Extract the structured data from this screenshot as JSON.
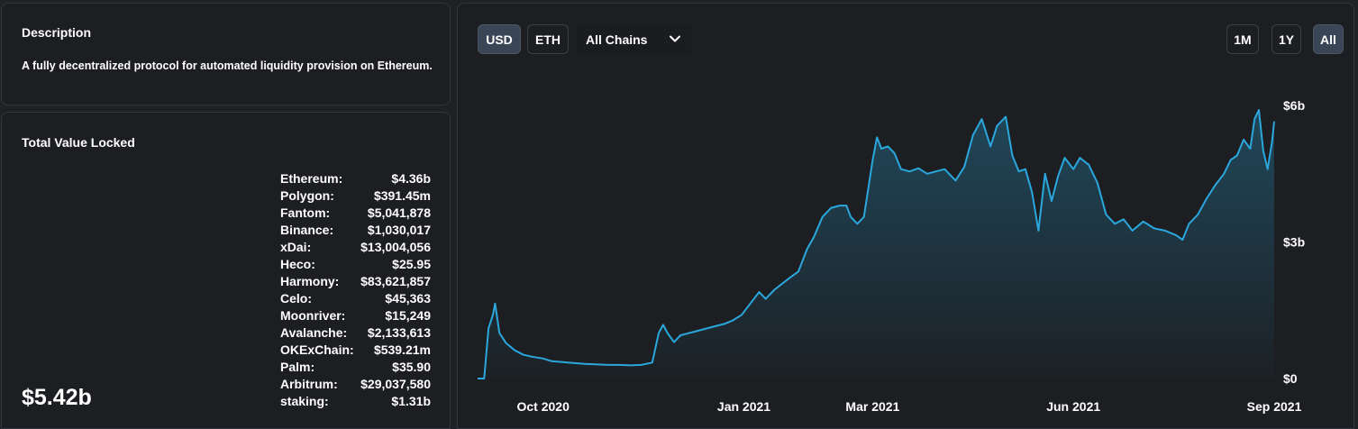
{
  "description": {
    "title": "Description",
    "text": "A fully decentralized protocol for automated liquidity provision on Ethereum."
  },
  "tvl": {
    "title": "Total Value Locked",
    "total": "$5.42b",
    "chains": [
      {
        "name": "Ethereum:",
        "value": "$4.36b"
      },
      {
        "name": "Polygon:",
        "value": "$391.45m"
      },
      {
        "name": "Fantom:",
        "value": "$5,041,878"
      },
      {
        "name": "Binance:",
        "value": "$1,030,017"
      },
      {
        "name": "xDai:",
        "value": "$13,004,056"
      },
      {
        "name": "Heco:",
        "value": "$25.95"
      },
      {
        "name": "Harmony:",
        "value": "$83,621,857"
      },
      {
        "name": "Celo:",
        "value": "$45,363"
      },
      {
        "name": "Moonriver:",
        "value": "$15,249"
      },
      {
        "name": "Avalanche:",
        "value": "$2,133,613"
      },
      {
        "name": "OKExChain:",
        "value": "$539.21m"
      },
      {
        "name": "Palm:",
        "value": "$35.90"
      },
      {
        "name": "Arbitrum:",
        "value": "$29,037,580"
      },
      {
        "name": "staking:",
        "value": "$1.31b"
      }
    ]
  },
  "controls": {
    "currency_usd": "USD",
    "currency_eth": "ETH",
    "chain_select": "All Chains",
    "range_1m": "1M",
    "range_1y": "1Y",
    "range_all": "All",
    "active_currency": "USD",
    "active_range": "All"
  },
  "colors": {
    "line": "#2aa7dc",
    "background": "#1f2125",
    "panel": "#1c1e22",
    "active_button": "#3a4655"
  },
  "chart_data": {
    "type": "area",
    "title": "",
    "xlabel": "",
    "ylabel": "",
    "x_ticks": [
      "Oct 2020",
      "Jan 2021",
      "Mar 2021",
      "Jun 2021",
      "Sep 2021"
    ],
    "y_ticks": [
      "$0",
      "$3b",
      "$6b"
    ],
    "x_range": [
      "2020-09-01",
      "2021-09-01"
    ],
    "ylim": [
      0,
      6
    ],
    "y_unit": "billion USD",
    "grid": false,
    "series": [
      {
        "values": [
          [
            "2020-09-01",
            0.0
          ],
          [
            "2020-09-04",
            0.0
          ],
          [
            "2020-09-06",
            1.1
          ],
          [
            "2020-09-08",
            1.4
          ],
          [
            "2020-09-09",
            1.65
          ],
          [
            "2020-09-11",
            1.0
          ],
          [
            "2020-09-14",
            0.78
          ],
          [
            "2020-09-18",
            0.62
          ],
          [
            "2020-09-22",
            0.52
          ],
          [
            "2020-09-26",
            0.48
          ],
          [
            "2020-10-01",
            0.44
          ],
          [
            "2020-10-05",
            0.38
          ],
          [
            "2020-10-10",
            0.36
          ],
          [
            "2020-10-15",
            0.34
          ],
          [
            "2020-10-20",
            0.32
          ],
          [
            "2020-10-25",
            0.31
          ],
          [
            "2020-10-31",
            0.3
          ],
          [
            "2020-11-05",
            0.3
          ],
          [
            "2020-11-10",
            0.29
          ],
          [
            "2020-11-15",
            0.3
          ],
          [
            "2020-11-20",
            0.35
          ],
          [
            "2020-11-23",
            1.0
          ],
          [
            "2020-11-25",
            1.18
          ],
          [
            "2020-11-27",
            1.0
          ],
          [
            "2020-11-30",
            0.8
          ],
          [
            "2020-12-03",
            0.95
          ],
          [
            "2020-12-07",
            1.0
          ],
          [
            "2020-12-11",
            1.05
          ],
          [
            "2020-12-15",
            1.1
          ],
          [
            "2020-12-19",
            1.15
          ],
          [
            "2020-12-23",
            1.2
          ],
          [
            "2020-12-27",
            1.28
          ],
          [
            "2020-12-31",
            1.4
          ],
          [
            "2021-01-04",
            1.65
          ],
          [
            "2021-01-08",
            1.9
          ],
          [
            "2021-01-11",
            1.75
          ],
          [
            "2021-01-15",
            1.95
          ],
          [
            "2021-01-19",
            2.1
          ],
          [
            "2021-01-23",
            2.25
          ],
          [
            "2021-01-26",
            2.35
          ],
          [
            "2021-01-30",
            2.85
          ],
          [
            "2021-02-02",
            3.1
          ],
          [
            "2021-02-06",
            3.55
          ],
          [
            "2021-02-10",
            3.75
          ],
          [
            "2021-02-14",
            3.8
          ],
          [
            "2021-02-17",
            3.8
          ],
          [
            "2021-02-19",
            3.55
          ],
          [
            "2021-02-22",
            3.4
          ],
          [
            "2021-02-25",
            3.55
          ],
          [
            "2021-03-01",
            4.8
          ],
          [
            "2021-03-03",
            5.3
          ],
          [
            "2021-03-05",
            5.05
          ],
          [
            "2021-03-08",
            5.1
          ],
          [
            "2021-03-11",
            4.95
          ],
          [
            "2021-03-14",
            4.6
          ],
          [
            "2021-03-18",
            4.55
          ],
          [
            "2021-03-22",
            4.62
          ],
          [
            "2021-03-26",
            4.5
          ],
          [
            "2021-03-30",
            4.55
          ],
          [
            "2021-04-03",
            4.6
          ],
          [
            "2021-04-08",
            4.35
          ],
          [
            "2021-04-12",
            4.65
          ],
          [
            "2021-04-16",
            5.35
          ],
          [
            "2021-04-20",
            5.7
          ],
          [
            "2021-04-24",
            5.1
          ],
          [
            "2021-04-27",
            5.55
          ],
          [
            "2021-05-01",
            5.75
          ],
          [
            "2021-05-04",
            4.9
          ],
          [
            "2021-05-07",
            4.55
          ],
          [
            "2021-05-10",
            4.6
          ],
          [
            "2021-05-13",
            4.1
          ],
          [
            "2021-05-16",
            3.25
          ],
          [
            "2021-05-19",
            4.5
          ],
          [
            "2021-05-22",
            3.9
          ],
          [
            "2021-05-25",
            4.45
          ],
          [
            "2021-05-28",
            4.85
          ],
          [
            "2021-06-01",
            4.6
          ],
          [
            "2021-06-04",
            4.85
          ],
          [
            "2021-06-08",
            4.7
          ],
          [
            "2021-06-12",
            4.3
          ],
          [
            "2021-06-16",
            3.6
          ],
          [
            "2021-06-20",
            3.4
          ],
          [
            "2021-06-24",
            3.5
          ],
          [
            "2021-06-28",
            3.25
          ],
          [
            "2021-07-03",
            3.45
          ],
          [
            "2021-07-08",
            3.3
          ],
          [
            "2021-07-13",
            3.25
          ],
          [
            "2021-07-18",
            3.15
          ],
          [
            "2021-07-21",
            3.05
          ],
          [
            "2021-07-24",
            3.4
          ],
          [
            "2021-07-28",
            3.6
          ],
          [
            "2021-08-01",
            3.95
          ],
          [
            "2021-08-05",
            4.25
          ],
          [
            "2021-08-09",
            4.5
          ],
          [
            "2021-08-12",
            4.8
          ],
          [
            "2021-08-15",
            4.9
          ],
          [
            "2021-08-18",
            5.25
          ],
          [
            "2021-08-21",
            5.05
          ],
          [
            "2021-08-23",
            5.7
          ],
          [
            "2021-08-25",
            5.9
          ],
          [
            "2021-08-27",
            5.0
          ],
          [
            "2021-08-29",
            4.6
          ],
          [
            "2021-08-31",
            5.2
          ],
          [
            "2021-09-01",
            5.65
          ]
        ]
      }
    ]
  }
}
